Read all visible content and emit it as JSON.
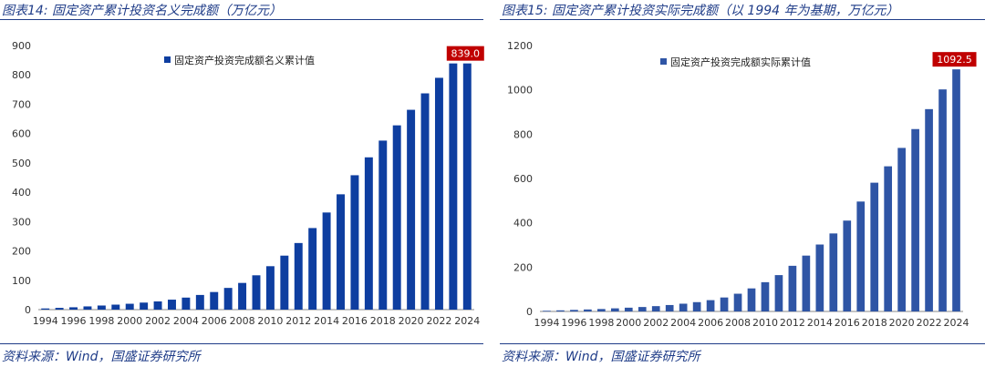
{
  "colors": {
    "bar": "#0e3ea0",
    "bar_right": "#2f55a5",
    "callout": "#c00000",
    "title_text": "#1f3c88",
    "axis": "#888888"
  },
  "panels": [
    {
      "title": "图表14:  固定资产累计投资名义完成额（万亿元）",
      "source": "资料来源：Wind，国盛证券研究所"
    },
    {
      "title": "图表15:  固定资产累计投资实际完成额（以 1994 年为基期，万亿元）",
      "source": "资料来源：Wind，国盛证券研究所"
    }
  ],
  "chart_data": [
    {
      "type": "bar",
      "legend": "固定资产投资完成额名义累计值",
      "legend_position": "top-center",
      "callout": "839.0",
      "ylim": [
        0,
        900
      ],
      "yticks": [
        0,
        100,
        200,
        300,
        400,
        500,
        600,
        700,
        800,
        900
      ],
      "x_tick_labels": [
        "1994",
        "1996",
        "1998",
        "2000",
        "2002",
        "2004",
        "2006",
        "2008",
        "2010",
        "2012",
        "2014",
        "2016",
        "2018",
        "2020",
        "2022",
        "2024"
      ],
      "categories": [
        "1994",
        "1995",
        "1996",
        "1997",
        "1998",
        "1999",
        "2000",
        "2001",
        "2002",
        "2003",
        "2004",
        "2005",
        "2006",
        "2007",
        "2008",
        "2009",
        "2010",
        "2011",
        "2012",
        "2013",
        "2014",
        "2015",
        "2016",
        "2017",
        "2018",
        "2019",
        "2020",
        "2021",
        "2022",
        "2023",
        "2024"
      ],
      "series": [
        {
          "name": "固定资产投资完成额名义累计值",
          "values": [
            4,
            6,
            8,
            11,
            14,
            17,
            20,
            24,
            28,
            34,
            41,
            50,
            60,
            74,
            91,
            117,
            148,
            184,
            227,
            278,
            331,
            393,
            458,
            519,
            576,
            628,
            681,
            737,
            790,
            839.0,
            839.0
          ]
        }
      ]
    },
    {
      "type": "bar",
      "legend": "固定资产投资完成额实际累计值",
      "legend_position": "top-center",
      "callout": "1092.5",
      "ylim": [
        0,
        1200
      ],
      "yticks": [
        0,
        200,
        400,
        600,
        800,
        1000,
        1200
      ],
      "x_tick_labels": [
        "1994",
        "1996",
        "1998",
        "2000",
        "2002",
        "2004",
        "2006",
        "2008",
        "2010",
        "2012",
        "2014",
        "2016",
        "2018",
        "2020",
        "2022",
        "2024"
      ],
      "categories": [
        "1994",
        "1995",
        "1996",
        "1997",
        "1998",
        "1999",
        "2000",
        "2001",
        "2002",
        "2003",
        "2004",
        "2005",
        "2006",
        "2007",
        "2008",
        "2009",
        "2010",
        "2011",
        "2012",
        "2013",
        "2014",
        "2015",
        "2016",
        "2017",
        "2018",
        "2019",
        "2020",
        "2021",
        "2022",
        "2023",
        "2024"
      ],
      "series": [
        {
          "name": "固定资产投资完成额实际累计值",
          "values": [
            3,
            5,
            7,
            9,
            11,
            14,
            17,
            20,
            24,
            29,
            35,
            42,
            51,
            63,
            80,
            104,
            132,
            164,
            206,
            252,
            302,
            352,
            410,
            496,
            581,
            655,
            738,
            823,
            913,
            1002,
            1092.5
          ]
        }
      ]
    }
  ]
}
